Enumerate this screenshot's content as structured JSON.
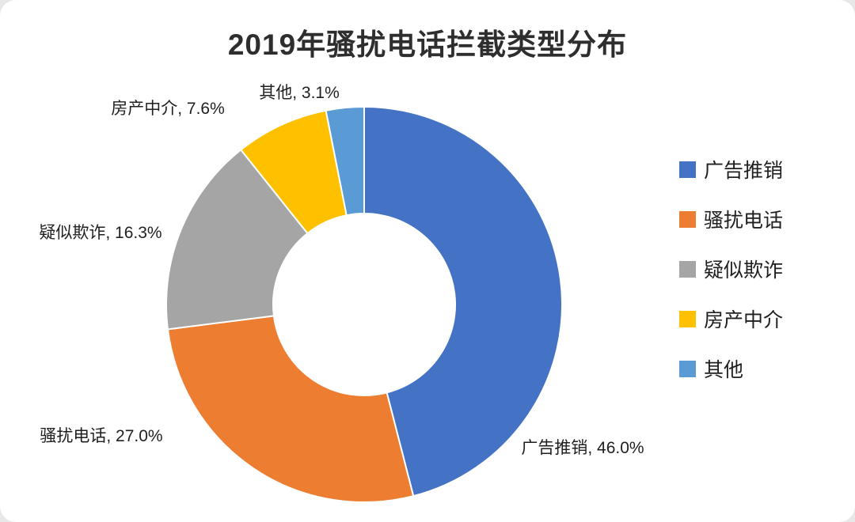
{
  "chart_data": {
    "type": "pie",
    "subtype": "donut",
    "title": "2019年骚扰电话拦截类型分布",
    "categories": [
      "广告推销",
      "骚扰电话",
      "疑似欺诈",
      "房产中介",
      "其他"
    ],
    "values": [
      46.0,
      27.0,
      16.3,
      7.6,
      3.1
    ],
    "unit": "%",
    "colors": [
      "#4472C4",
      "#ED7D31",
      "#A5A5A5",
      "#FFC000",
      "#5B9BD5"
    ],
    "data_labels": [
      "广告推销, 46.0%",
      "骚扰电话, 27.0%",
      "疑似欺诈, 16.3%",
      "房产中介, 7.6%",
      "其他, 3.1%"
    ],
    "legend": {
      "position": "right",
      "entries": [
        "广告推销",
        "骚扰电话",
        "疑似欺诈",
        "房产中介",
        "其他"
      ]
    },
    "start_angle": 0,
    "direction": "clockwise",
    "hole_ratio": 0.46
  }
}
